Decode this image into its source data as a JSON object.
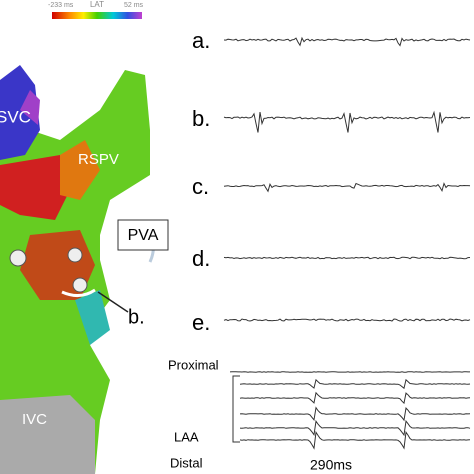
{
  "colorbar": {
    "min_label": "-233 ms",
    "title": "LAT",
    "max_label": "52 ms"
  },
  "map": {
    "labels": [
      "SVC",
      "RSPV",
      "IVC"
    ],
    "callout": "PVA",
    "pointer": "b."
  },
  "traces": {
    "labels": [
      "a.",
      "b.",
      "c.",
      "d.",
      "e."
    ]
  },
  "recording": {
    "proximal": "Proximal",
    "group": "LAA",
    "distal": "Distal",
    "scale": "290ms"
  }
}
